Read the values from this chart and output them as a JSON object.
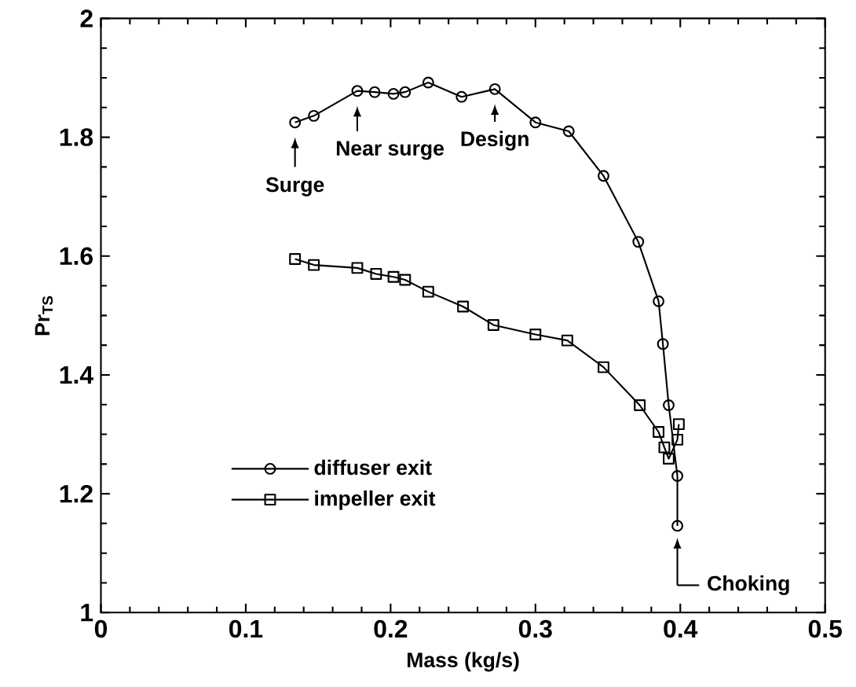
{
  "chart_data": {
    "type": "line",
    "xlabel": "Mass (kg/s)",
    "ylabel": "Pr$_{TS}$",
    "xlim": [
      0,
      0.5
    ],
    "ylim": [
      1,
      2
    ],
    "xticks": [
      0,
      0.1,
      0.2,
      0.3,
      0.4,
      0.5
    ],
    "yticks": [
      1,
      1.2,
      1.4,
      1.6,
      1.8,
      2
    ],
    "legend": "bottom left",
    "grid": false,
    "series": [
      {
        "name": "diffuser exit",
        "color": "#000000",
        "marker": "circle",
        "x": [
          0.134,
          0.147,
          0.177,
          0.189,
          0.202,
          0.21,
          0.226,
          0.249,
          0.272,
          0.3,
          0.323,
          0.347,
          0.371,
          0.385,
          0.388,
          0.392,
          0.398,
          0.398
        ],
        "values": [
          1.825,
          1.836,
          1.878,
          1.876,
          1.873,
          1.876,
          1.892,
          1.868,
          1.881,
          1.825,
          1.81,
          1.735,
          1.624,
          1.524,
          1.452,
          1.349,
          1.23,
          1.146
        ]
      },
      {
        "name": "impeller exit",
        "color": "#000000",
        "marker": "square",
        "x": [
          0.134,
          0.147,
          0.177,
          0.19,
          0.202,
          0.21,
          0.226,
          0.25,
          0.271,
          0.3,
          0.322,
          0.347,
          0.372,
          0.385,
          0.389,
          0.392,
          0.398,
          0.399
        ],
        "values": [
          1.595,
          1.585,
          1.58,
          1.57,
          1.565,
          1.56,
          1.54,
          1.515,
          1.484,
          1.468,
          1.458,
          1.413,
          1.349,
          1.304,
          1.278,
          1.259,
          1.291,
          1.317
        ]
      }
    ],
    "annotations": [
      {
        "text": "Surge",
        "x": 0.134,
        "y": 1.825
      },
      {
        "text": "Near surge",
        "x": 0.177,
        "y": 1.878
      },
      {
        "text": "Design",
        "x": 0.272,
        "y": 1.881
      },
      {
        "text": "Choking",
        "x": 0.398,
        "y": 1.146
      }
    ]
  }
}
